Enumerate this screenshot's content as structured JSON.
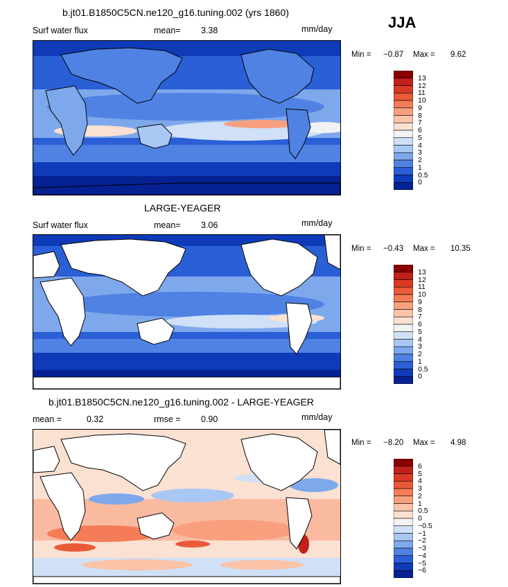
{
  "season": "JJA",
  "panels": [
    {
      "title": "b.jt01.B1850C5CN.ne120_g16.tuning.002 (yrs 1860)",
      "left_label": "Surf water flux",
      "stat_label": "mean=",
      "stat_value": "3.38",
      "stat2_label": "",
      "stat2_value": "",
      "units": "mm/day",
      "min_label": "Min =",
      "min_value": "−0.87",
      "max_label": "Max =",
      "max_value": "9.62",
      "colorbar": {
        "labels": [
          "13",
          "12",
          "11",
          "10",
          "9",
          "8",
          "7",
          "6",
          "5",
          "4",
          "3",
          "2",
          "1",
          "0.5",
          "0"
        ],
        "colors": [
          "#8b0000",
          "#c0211a",
          "#d93a25",
          "#ea5a39",
          "#f47c58",
          "#f8a07e",
          "#fbc3a8",
          "#fbe1d2",
          "#f2f2f2",
          "#cfe0f7",
          "#a9c7f3",
          "#7ea8ec",
          "#4f82e2",
          "#2b5fd6",
          "#0f3bb8",
          "#062192"
        ]
      }
    },
    {
      "title": "LARGE-YEAGER",
      "left_label": "Surf water flux",
      "stat_label": "mean=",
      "stat_value": "3.06",
      "stat2_label": "",
      "stat2_value": "",
      "units": "mm/day",
      "min_label": "Min =",
      "min_value": "−0.43",
      "max_label": "Max =",
      "max_value": "10.35",
      "colorbar": {
        "labels": [
          "13",
          "12",
          "11",
          "10",
          "9",
          "8",
          "7",
          "6",
          "5",
          "4",
          "3",
          "2",
          "1",
          "0.5",
          "0"
        ],
        "colors": [
          "#8b0000",
          "#c0211a",
          "#d93a25",
          "#ea5a39",
          "#f47c58",
          "#f8a07e",
          "#fbc3a8",
          "#fbe1d2",
          "#f2f2f2",
          "#cfe0f7",
          "#a9c7f3",
          "#7ea8ec",
          "#4f82e2",
          "#2b5fd6",
          "#0f3bb8",
          "#062192"
        ]
      }
    },
    {
      "title": "b.jt01.B1850C5CN.ne120_g16.tuning.002 - LARGE-YEAGER",
      "left_label": "",
      "stat_label": "mean =",
      "stat_value": "0.32",
      "stat2_label": "rmse =",
      "stat2_value": "0.90",
      "units": "mm/day",
      "min_label": "Min =",
      "min_value": "−8.20",
      "max_label": "Max =",
      "max_value": "4.98",
      "colorbar": {
        "labels": [
          "6",
          "5",
          "4",
          "3",
          "2",
          "1",
          "0.5",
          "0",
          "−0.5",
          "−1",
          "−2",
          "−3",
          "−4",
          "−5",
          "−6"
        ],
        "colors": [
          "#8b0000",
          "#c0211a",
          "#d93a25",
          "#ea5a39",
          "#f47c58",
          "#f8a07e",
          "#fbc3a8",
          "#fbe1d2",
          "#f2f2f2",
          "#cfe0f7",
          "#a9c7f3",
          "#7ea8ec",
          "#4f82e2",
          "#2b5fd6",
          "#0f3bb8",
          "#062192"
        ]
      }
    }
  ]
}
